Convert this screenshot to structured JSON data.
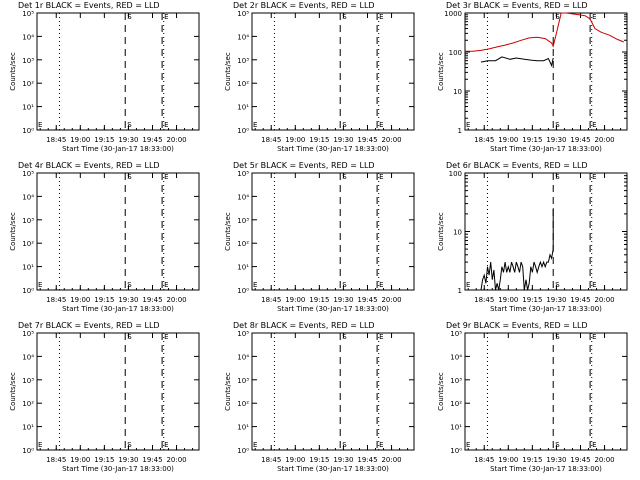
{
  "chart_data": [
    {
      "type": "line",
      "title": "Det 1r BLACK = Events, RED = LLD",
      "xlabel": "Start Time (30-Jan-17 18:33:00)",
      "ylabel": "Counts/sec",
      "scale": "log",
      "yticks": [
        "10⁰",
        "10¹",
        "10²",
        "10³",
        "10⁴",
        "10⁵"
      ],
      "xticks": [
        "18:45",
        "19:00",
        "19:15",
        "19:30",
        "19:45",
        "20:00"
      ],
      "ylim": [
        1,
        100000
      ],
      "xlim": [
        "18:33",
        "20:14"
      ],
      "markers": [
        {
          "label": "S",
          "time": "19:28"
        },
        {
          "label": "E",
          "time": "19:51"
        }
      ],
      "series": []
    },
    {
      "type": "line",
      "title": "Det 2r BLACK = Events, RED = LLD",
      "xlabel": "Start Time (30-Jan-17 18:33:00)",
      "ylabel": "Counts/sec",
      "scale": "log",
      "yticks": [
        "10⁰",
        "10¹",
        "10²",
        "10³",
        "10⁴",
        "10⁵"
      ],
      "xticks": [
        "18:45",
        "19:00",
        "19:15",
        "19:30",
        "19:45",
        "20:00"
      ],
      "ylim": [
        1,
        100000
      ],
      "xlim": [
        "18:33",
        "20:14"
      ],
      "markers": [
        {
          "label": "S",
          "time": "19:28"
        },
        {
          "label": "E",
          "time": "19:51"
        }
      ],
      "series": []
    },
    {
      "type": "line",
      "title": "Det 3r BLACK = Events, RED = LLD",
      "xlabel": "Start Time (30-Jan-17 18:33:00)",
      "ylabel": "Counts/sec",
      "scale": "log",
      "yticks": [
        "1",
        "10",
        "100",
        "1000"
      ],
      "xticks": [
        "18:45",
        "19:00",
        "19:15",
        "19:30",
        "19:45",
        "20:00"
      ],
      "ylim": [
        1,
        1000
      ],
      "xlim": [
        "18:33",
        "20:14"
      ],
      "markers": [
        {
          "label": "S",
          "time": "19:28"
        },
        {
          "label": "E",
          "time": "19:51"
        }
      ],
      "series": [
        {
          "color": "#cc0000",
          "x": [
            "18:33",
            "18:38",
            "18:43",
            "18:48",
            "18:53",
            "18:58",
            "19:03",
            "19:08",
            "19:13",
            "19:18",
            "19:23",
            "19:27",
            "19:28",
            "19:30",
            "19:33",
            "19:36",
            "19:40",
            "19:44",
            "19:48",
            "19:51",
            "19:54",
            "19:58",
            "20:03",
            "20:08",
            "20:12"
          ],
          "y": [
            105,
            105,
            110,
            120,
            135,
            150,
            170,
            200,
            230,
            240,
            220,
            170,
            140,
            300,
            1000,
            1000,
            950,
            900,
            850,
            700,
            400,
            320,
            270,
            210,
            180
          ]
        },
        {
          "color": "#000000",
          "x": [
            "18:43",
            "18:47",
            "18:52",
            "18:56",
            "19:01",
            "19:05",
            "19:10",
            "19:14",
            "19:18",
            "19:22",
            "19:25",
            "19:27",
            "19:28"
          ],
          "y": [
            55,
            60,
            60,
            75,
            65,
            70,
            65,
            62,
            60,
            60,
            68,
            45,
            70
          ]
        }
      ]
    },
    {
      "type": "line",
      "title": "Det 4r BLACK = Events, RED = LLD",
      "xlabel": "Start Time (30-Jan-17 18:33:00)",
      "ylabel": "Counts/sec",
      "scale": "log",
      "yticks": [
        "10⁰",
        "10¹",
        "10²",
        "10³",
        "10⁴",
        "10⁵"
      ],
      "xticks": [
        "18:45",
        "19:00",
        "19:15",
        "19:30",
        "19:45",
        "20:00"
      ],
      "ylim": [
        1,
        100000
      ],
      "xlim": [
        "18:33",
        "20:14"
      ],
      "markers": [
        {
          "label": "S",
          "time": "19:28"
        },
        {
          "label": "E",
          "time": "19:51"
        }
      ],
      "series": []
    },
    {
      "type": "line",
      "title": "Det 5r BLACK = Events, RED = LLD",
      "xlabel": "Start Time (30-Jan-17 18:33:00)",
      "ylabel": "Counts/sec",
      "scale": "log",
      "yticks": [
        "10⁰",
        "10¹",
        "10²",
        "10³",
        "10⁴",
        "10⁵"
      ],
      "xticks": [
        "18:45",
        "19:00",
        "19:15",
        "19:30",
        "19:45",
        "20:00"
      ],
      "ylim": [
        1,
        100000
      ],
      "xlim": [
        "18:33",
        "20:14"
      ],
      "markers": [
        {
          "label": "S",
          "time": "19:28"
        },
        {
          "label": "E",
          "time": "19:51"
        }
      ],
      "series": []
    },
    {
      "type": "line",
      "title": "Det 6r BLACK = Events, RED = LLD",
      "xlabel": "Start Time (30-Jan-17 18:33:00)",
      "ylabel": "Counts/sec",
      "scale": "log",
      "yticks": [
        "1",
        "10",
        "100"
      ],
      "xticks": [
        "18:45",
        "19:00",
        "19:15",
        "19:30",
        "19:45",
        "20:00"
      ],
      "ylim": [
        1,
        100
      ],
      "xlim": [
        "18:33",
        "20:14"
      ],
      "markers": [
        {
          "label": "S",
          "time": "19:28"
        },
        {
          "label": "E",
          "time": "19:51"
        }
      ],
      "series": [
        {
          "color": "#000000",
          "x": [
            "18:43",
            "18:44",
            "18:45",
            "18:46",
            "18:47",
            "18:48",
            "18:49",
            "18:50",
            "18:51",
            "18:52",
            "18:53",
            "18:54",
            "18:55",
            "18:56",
            "18:57",
            "18:58",
            "18:59",
            "19:00",
            "19:01",
            "19:02",
            "19:03",
            "19:04",
            "19:05",
            "19:06",
            "19:07",
            "19:08",
            "19:09",
            "19:10",
            "19:11",
            "19:12",
            "19:13",
            "19:14",
            "19:15",
            "19:16",
            "19:17",
            "19:18",
            "19:19",
            "19:20",
            "19:21",
            "19:22",
            "19:23",
            "19:24",
            "19:25",
            "19:26",
            "19:27",
            "19:28",
            "19:28",
            "19:28"
          ],
          "y": [
            1,
            1.5,
            1.8,
            1.3,
            2.5,
            1.8,
            3,
            1.5,
            2.2,
            1,
            1.3,
            1,
            1.5,
            2.5,
            2,
            3,
            2,
            2.5,
            2,
            3,
            2.5,
            2,
            3,
            2.5,
            2,
            3,
            2.5,
            1,
            1.5,
            1,
            1.3,
            2.5,
            2,
            3,
            2.5,
            2,
            2.5,
            3,
            2.5,
            3,
            2.5,
            3,
            3,
            4,
            3.5,
            5,
            25,
            8
          ]
        }
      ]
    },
    {
      "type": "line",
      "title": "Det 7r BLACK = Events, RED = LLD",
      "xlabel": "Start Time (30-Jan-17 18:33:00)",
      "ylabel": "Counts/sec",
      "scale": "log",
      "yticks": [
        "10⁰",
        "10¹",
        "10²",
        "10³",
        "10⁴",
        "10⁵"
      ],
      "xticks": [
        "18:45",
        "19:00",
        "19:15",
        "19:30",
        "19:45",
        "20:00"
      ],
      "ylim": [
        1,
        100000
      ],
      "xlim": [
        "18:33",
        "20:14"
      ],
      "markers": [
        {
          "label": "S",
          "time": "19:28"
        },
        {
          "label": "E",
          "time": "19:51"
        }
      ],
      "series": []
    },
    {
      "type": "line",
      "title": "Det 8r BLACK = Events, RED = LLD",
      "xlabel": "Start Time (30-Jan-17 18:33:00)",
      "ylabel": "Counts/sec",
      "scale": "log",
      "yticks": [
        "10⁰",
        "10¹",
        "10²",
        "10³",
        "10⁴",
        "10⁵"
      ],
      "xticks": [
        "18:45",
        "19:00",
        "19:15",
        "19:30",
        "19:45",
        "20:00"
      ],
      "ylim": [
        1,
        100000
      ],
      "xlim": [
        "18:33",
        "20:14"
      ],
      "markers": [
        {
          "label": "S",
          "time": "19:28"
        },
        {
          "label": "E",
          "time": "19:51"
        }
      ],
      "series": []
    },
    {
      "type": "line",
      "title": "Det 9r BLACK = Events, RED = LLD",
      "xlabel": "Start Time (30-Jan-17 18:33:00)",
      "ylabel": "Counts/sec",
      "scale": "log",
      "yticks": [
        "10⁰",
        "10¹",
        "10²",
        "10³",
        "10⁴",
        "10⁵"
      ],
      "xticks": [
        "18:45",
        "19:00",
        "19:15",
        "19:30",
        "19:45",
        "20:00"
      ],
      "ylim": [
        1,
        100000
      ],
      "xlim": [
        "18:33",
        "20:14"
      ],
      "markers": [
        {
          "label": "S",
          "time": "19:28"
        },
        {
          "label": "E",
          "time": "19:51"
        }
      ],
      "series": []
    }
  ]
}
